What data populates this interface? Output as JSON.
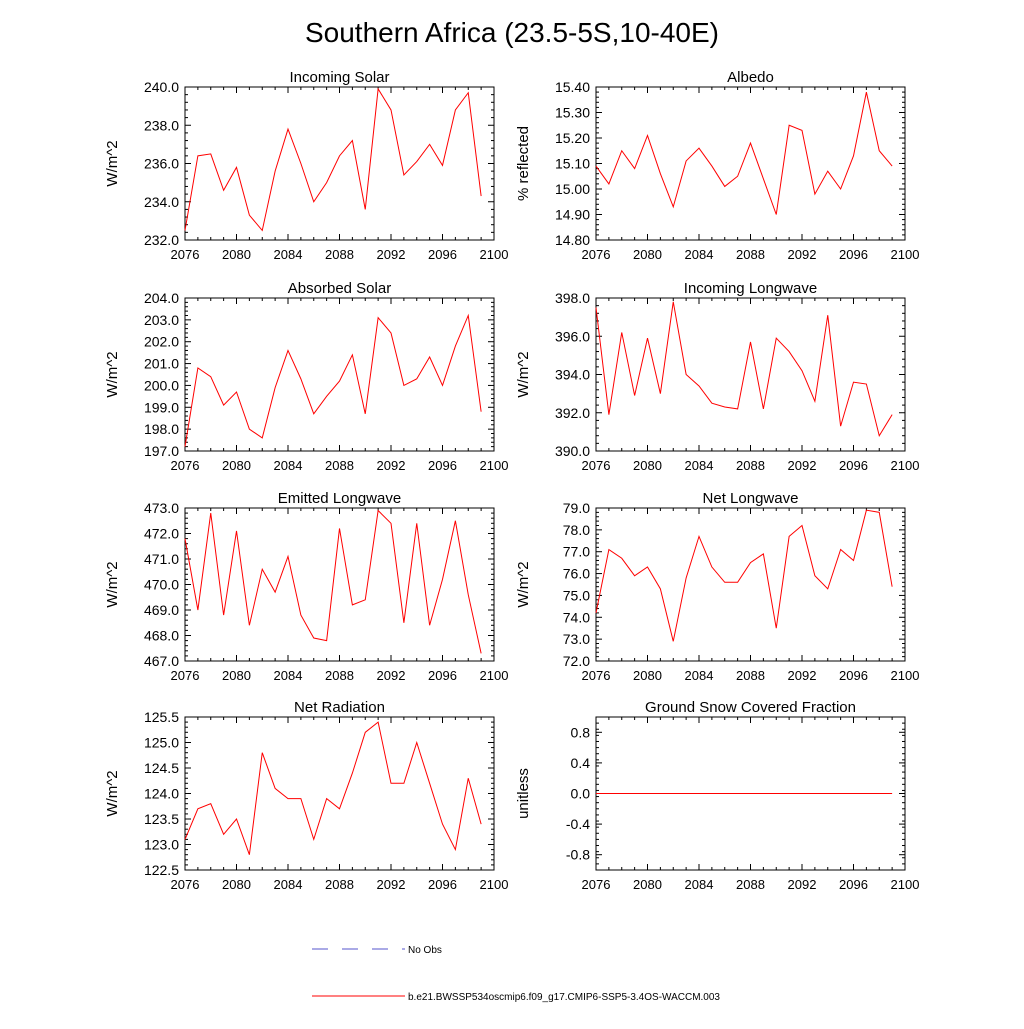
{
  "figure_title": "Southern Africa (23.5-5S,10-40E)",
  "legend": {
    "entries": [
      {
        "label": "No Obs",
        "color": "#5555cc",
        "style": "dashed"
      },
      {
        "label": "b.e21.BWSSP534oscmip6.f09_g17.CMIP6-SSP5-3.4OS-WACCM.003",
        "color": "#ff0000",
        "style": "solid"
      }
    ]
  },
  "chart_data": [
    {
      "type": "line",
      "title": "Incoming Solar",
      "ylabel": "W/m^2",
      "xlim": [
        2076,
        2100
      ],
      "ylim": [
        232.0,
        240.0
      ],
      "xticks": [
        2076,
        2080,
        2084,
        2088,
        2092,
        2096,
        2100
      ],
      "xtick_labels": [
        "2076",
        "2080",
        "2084",
        "2088",
        "2092",
        "2096",
        "2100"
      ],
      "yticks": [
        232.0,
        234.0,
        236.0,
        238.0,
        240.0
      ],
      "ytick_labels": [
        "232.0",
        "234.0",
        "236.0",
        "238.0",
        "240.0"
      ],
      "series": [
        {
          "name": "model",
          "color": "#ff0000",
          "x": [
            2076,
            2077,
            2078,
            2079,
            2080,
            2081,
            2082,
            2083,
            2084,
            2085,
            2086,
            2087,
            2088,
            2089,
            2090,
            2091,
            2092,
            2093,
            2094,
            2095,
            2096,
            2097,
            2098,
            2099
          ],
          "y": [
            232.5,
            236.4,
            236.5,
            234.6,
            235.8,
            233.3,
            232.5,
            235.6,
            237.8,
            236.0,
            234.0,
            235.0,
            236.4,
            237.2,
            233.6,
            239.9,
            238.8,
            235.4,
            236.1,
            237.0,
            235.9,
            238.8,
            239.7,
            234.3
          ]
        }
      ]
    },
    {
      "type": "line",
      "title": "Albedo",
      "ylabel": "% reflected",
      "xlim": [
        2076,
        2100
      ],
      "ylim": [
        14.8,
        15.4
      ],
      "xticks": [
        2076,
        2080,
        2084,
        2088,
        2092,
        2096,
        2100
      ],
      "xtick_labels": [
        "2076",
        "2080",
        "2084",
        "2088",
        "2092",
        "2096",
        "2100"
      ],
      "yticks": [
        14.8,
        14.9,
        15.0,
        15.1,
        15.2,
        15.3,
        15.4
      ],
      "ytick_labels": [
        "14.80",
        "14.90",
        "15.00",
        "15.10",
        "15.20",
        "15.30",
        "15.40"
      ],
      "series": [
        {
          "name": "model",
          "color": "#ff0000",
          "x": [
            2076,
            2077,
            2078,
            2079,
            2080,
            2081,
            2082,
            2083,
            2084,
            2085,
            2086,
            2087,
            2088,
            2089,
            2090,
            2091,
            2092,
            2093,
            2094,
            2095,
            2096,
            2097,
            2098,
            2099
          ],
          "y": [
            15.09,
            15.02,
            15.15,
            15.08,
            15.21,
            15.06,
            14.93,
            15.11,
            15.16,
            15.09,
            15.01,
            15.05,
            15.18,
            15.04,
            14.9,
            15.25,
            15.23,
            14.98,
            15.07,
            15.0,
            15.13,
            15.38,
            15.15,
            15.09
          ]
        }
      ]
    },
    {
      "type": "line",
      "title": "Absorbed Solar",
      "ylabel": "W/m^2",
      "xlim": [
        2076,
        2100
      ],
      "ylim": [
        197.0,
        204.0
      ],
      "xticks": [
        2076,
        2080,
        2084,
        2088,
        2092,
        2096,
        2100
      ],
      "xtick_labels": [
        "2076",
        "2080",
        "2084",
        "2088",
        "2092",
        "2096",
        "2100"
      ],
      "yticks": [
        197.0,
        198.0,
        199.0,
        200.0,
        201.0,
        202.0,
        203.0,
        204.0
      ],
      "ytick_labels": [
        "197.0",
        "198.0",
        "199.0",
        "200.0",
        "201.0",
        "202.0",
        "203.0",
        "204.0"
      ],
      "series": [
        {
          "name": "model",
          "color": "#ff0000",
          "x": [
            2076,
            2077,
            2078,
            2079,
            2080,
            2081,
            2082,
            2083,
            2084,
            2085,
            2086,
            2087,
            2088,
            2089,
            2090,
            2091,
            2092,
            2093,
            2094,
            2095,
            2096,
            2097,
            2098,
            2099
          ],
          "y": [
            197.2,
            200.8,
            200.4,
            199.1,
            199.7,
            198.0,
            197.6,
            199.9,
            201.6,
            200.3,
            198.7,
            199.5,
            200.2,
            201.4,
            198.7,
            203.1,
            202.4,
            200.0,
            200.3,
            201.3,
            200.0,
            201.8,
            203.2,
            198.8
          ]
        }
      ]
    },
    {
      "type": "line",
      "title": "Incoming Longwave",
      "ylabel": "W/m^2",
      "xlim": [
        2076,
        2100
      ],
      "ylim": [
        390.0,
        398.0
      ],
      "xticks": [
        2076,
        2080,
        2084,
        2088,
        2092,
        2096,
        2100
      ],
      "xtick_labels": [
        "2076",
        "2080",
        "2084",
        "2088",
        "2092",
        "2096",
        "2100"
      ],
      "yticks": [
        390.0,
        392.0,
        394.0,
        396.0,
        398.0
      ],
      "ytick_labels": [
        "390.0",
        "392.0",
        "394.0",
        "396.0",
        "398.0"
      ],
      "series": [
        {
          "name": "model",
          "color": "#ff0000",
          "x": [
            2076,
            2077,
            2078,
            2079,
            2080,
            2081,
            2082,
            2083,
            2084,
            2085,
            2086,
            2087,
            2088,
            2089,
            2090,
            2091,
            2092,
            2093,
            2094,
            2095,
            2096,
            2097,
            2098,
            2099
          ],
          "y": [
            397.5,
            391.9,
            396.2,
            392.9,
            395.9,
            393.0,
            397.8,
            394.0,
            393.4,
            392.5,
            392.3,
            392.2,
            395.7,
            392.2,
            395.9,
            395.2,
            394.2,
            392.6,
            397.1,
            391.3,
            393.6,
            393.5,
            390.8,
            391.9
          ]
        }
      ]
    },
    {
      "type": "line",
      "title": "Emitted Longwave",
      "ylabel": "W/m^2",
      "xlim": [
        2076,
        2100
      ],
      "ylim": [
        467.0,
        473.0
      ],
      "xticks": [
        2076,
        2080,
        2084,
        2088,
        2092,
        2096,
        2100
      ],
      "xtick_labels": [
        "2076",
        "2080",
        "2084",
        "2088",
        "2092",
        "2096",
        "2100"
      ],
      "yticks": [
        467.0,
        468.0,
        469.0,
        470.0,
        471.0,
        472.0,
        473.0
      ],
      "ytick_labels": [
        "467.0",
        "468.0",
        "469.0",
        "470.0",
        "471.0",
        "472.0",
        "473.0"
      ],
      "series": [
        {
          "name": "model",
          "color": "#ff0000",
          "x": [
            2076,
            2077,
            2078,
            2079,
            2080,
            2081,
            2082,
            2083,
            2084,
            2085,
            2086,
            2087,
            2088,
            2089,
            2090,
            2091,
            2092,
            2093,
            2094,
            2095,
            2096,
            2097,
            2098,
            2099
          ],
          "y": [
            471.8,
            469.0,
            472.8,
            468.8,
            472.1,
            468.4,
            470.6,
            469.7,
            471.1,
            468.8,
            467.9,
            467.8,
            472.2,
            469.2,
            469.4,
            472.9,
            472.4,
            468.5,
            472.4,
            468.4,
            470.2,
            472.5,
            469.6,
            467.3
          ]
        }
      ]
    },
    {
      "type": "line",
      "title": "Net Longwave",
      "ylabel": "W/m^2",
      "xlim": [
        2076,
        2100
      ],
      "ylim": [
        72.0,
        79.0
      ],
      "xticks": [
        2076,
        2080,
        2084,
        2088,
        2092,
        2096,
        2100
      ],
      "xtick_labels": [
        "2076",
        "2080",
        "2084",
        "2088",
        "2092",
        "2096",
        "2100"
      ],
      "yticks": [
        72.0,
        73.0,
        74.0,
        75.0,
        76.0,
        77.0,
        78.0,
        79.0
      ],
      "ytick_labels": [
        "72.0",
        "73.0",
        "74.0",
        "75.0",
        "76.0",
        "77.0",
        "78.0",
        "79.0"
      ],
      "series": [
        {
          "name": "model",
          "color": "#ff0000",
          "x": [
            2076,
            2077,
            2078,
            2079,
            2080,
            2081,
            2082,
            2083,
            2084,
            2085,
            2086,
            2087,
            2088,
            2089,
            2090,
            2091,
            2092,
            2093,
            2094,
            2095,
            2096,
            2097,
            2098,
            2099
          ],
          "y": [
            74.2,
            77.1,
            76.7,
            75.9,
            76.3,
            75.3,
            72.9,
            75.8,
            77.7,
            76.3,
            75.6,
            75.6,
            76.5,
            76.9,
            73.5,
            77.7,
            78.2,
            75.9,
            75.3,
            77.1,
            76.6,
            78.9,
            78.8,
            75.4
          ]
        }
      ]
    },
    {
      "type": "line",
      "title": "Net Radiation",
      "ylabel": "W/m^2",
      "xlim": [
        2076,
        2100
      ],
      "ylim": [
        122.5,
        125.5
      ],
      "xticks": [
        2076,
        2080,
        2084,
        2088,
        2092,
        2096,
        2100
      ],
      "xtick_labels": [
        "2076",
        "2080",
        "2084",
        "2088",
        "2092",
        "2096",
        "2100"
      ],
      "yticks": [
        122.5,
        123.0,
        123.5,
        124.0,
        124.5,
        125.0,
        125.5
      ],
      "ytick_labels": [
        "122.5",
        "123.0",
        "123.5",
        "124.0",
        "124.5",
        "125.0",
        "125.5"
      ],
      "series": [
        {
          "name": "model",
          "color": "#ff0000",
          "x": [
            2076,
            2077,
            2078,
            2079,
            2080,
            2081,
            2082,
            2083,
            2084,
            2085,
            2086,
            2087,
            2088,
            2089,
            2090,
            2091,
            2092,
            2093,
            2094,
            2095,
            2096,
            2097,
            2098,
            2099
          ],
          "y": [
            123.1,
            123.7,
            123.8,
            123.2,
            123.5,
            122.8,
            124.8,
            124.1,
            123.9,
            123.9,
            123.1,
            123.9,
            123.7,
            124.4,
            125.2,
            125.4,
            124.2,
            124.2,
            125.0,
            124.2,
            123.4,
            122.9,
            124.3,
            123.4
          ]
        }
      ]
    },
    {
      "type": "line",
      "title": "Ground Snow Covered Fraction",
      "ylabel": "unitless",
      "xlim": [
        2076,
        2100
      ],
      "ylim": [
        -1.0,
        1.0
      ],
      "xticks": [
        2076,
        2080,
        2084,
        2088,
        2092,
        2096,
        2100
      ],
      "xtick_labels": [
        "2076",
        "2080",
        "2084",
        "2088",
        "2092",
        "2096",
        "2100"
      ],
      "yticks": [
        -0.8,
        -0.4,
        0.0,
        0.4,
        0.8
      ],
      "ytick_labels": [
        "-0.8",
        "-0.4",
        "0.0",
        "0.4",
        "0.8"
      ],
      "series": [
        {
          "name": "model",
          "color": "#ff0000",
          "x": [
            2076,
            2077,
            2078,
            2079,
            2080,
            2081,
            2082,
            2083,
            2084,
            2085,
            2086,
            2087,
            2088,
            2089,
            2090,
            2091,
            2092,
            2093,
            2094,
            2095,
            2096,
            2097,
            2098,
            2099
          ],
          "y": [
            0,
            0,
            0,
            0,
            0,
            0,
            0,
            0,
            0,
            0,
            0,
            0,
            0,
            0,
            0,
            0,
            0,
            0,
            0,
            0,
            0,
            0,
            0,
            0
          ]
        }
      ]
    }
  ]
}
